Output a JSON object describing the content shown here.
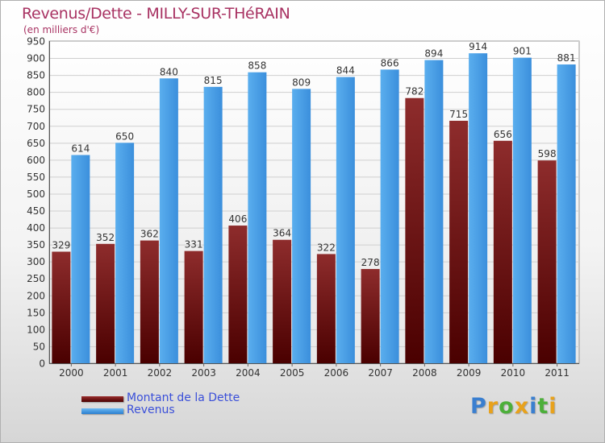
{
  "chart_data": {
    "type": "bar",
    "title": "Revenus/Dette - MILLY-SUR-THéRAIN",
    "subtitle": "(en milliers d'€)",
    "categories": [
      "2000",
      "2001",
      "2002",
      "2003",
      "2004",
      "2005",
      "2006",
      "2007",
      "2008",
      "2009",
      "2010",
      "2011"
    ],
    "series": [
      {
        "name": "Montant de la Dette",
        "values": [
          329,
          352,
          362,
          331,
          406,
          364,
          322,
          278,
          782,
          715,
          656,
          598
        ],
        "color": "#7a1e1e"
      },
      {
        "name": "Revenus",
        "values": [
          614,
          650,
          840,
          815,
          858,
          809,
          844,
          866,
          894,
          914,
          901,
          881
        ],
        "color": "#4fa3e8"
      }
    ],
    "yticks": [
      0,
      50,
      100,
      150,
      200,
      250,
      300,
      350,
      400,
      450,
      500,
      550,
      600,
      650,
      700,
      750,
      800,
      850,
      900,
      950
    ],
    "ylim": [
      0,
      950
    ],
    "grid": true,
    "legend": "bottom-left"
  },
  "logo": {
    "letters": [
      {
        "ch": "P",
        "color": "#3a7fd0"
      },
      {
        "ch": "r",
        "color": "#e8a21c"
      },
      {
        "ch": "o",
        "color": "#4caf3a"
      },
      {
        "ch": "x",
        "color": "#e8a21c"
      },
      {
        "ch": "i",
        "color": "#3a7fd0"
      },
      {
        "ch": "t",
        "color": "#4caf3a"
      },
      {
        "ch": "i",
        "color": "#e8a21c"
      }
    ]
  }
}
